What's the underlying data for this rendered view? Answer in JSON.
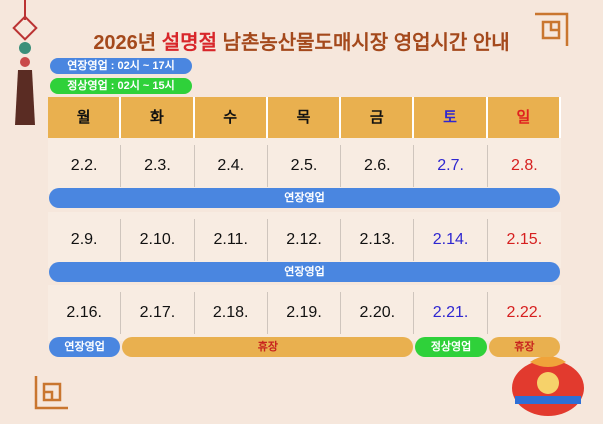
{
  "title": {
    "year": "2026년",
    "highlight": "설명절",
    "rest": "남촌농산물도매시장 영업시간 안내"
  },
  "legend": [
    "연장영업 : 02시 ~ 17시",
    "정상영업 : 02시 ~ 15시"
  ],
  "weekdays": [
    "월",
    "화",
    "수",
    "목",
    "금",
    "토",
    "일"
  ],
  "weeks": [
    {
      "dates": [
        "2.2.",
        "2.3.",
        "2.4.",
        "2.5.",
        "2.6.",
        "2.7.",
        "2.8."
      ],
      "bands": [
        "연장영업"
      ]
    },
    {
      "dates": [
        "2.9.",
        "2.10.",
        "2.11.",
        "2.12.",
        "2.13.",
        "2.14.",
        "2.15."
      ],
      "bands": [
        "연장영업"
      ]
    },
    {
      "dates": [
        "2.16.",
        "2.17.",
        "2.18.",
        "2.19.",
        "2.20.",
        "2.21.",
        "2.22."
      ],
      "bands": [
        "연장영업",
        "휴장",
        "정상영업",
        "휴장"
      ]
    }
  ]
}
